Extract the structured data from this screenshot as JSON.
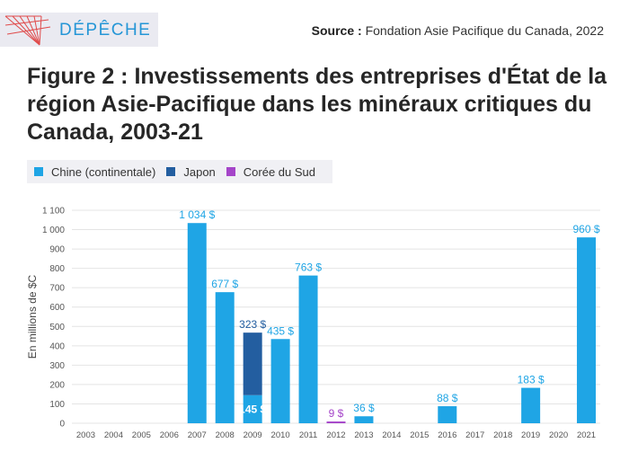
{
  "header": {
    "brand": "DÉPÊCHE",
    "source_label": "Source :",
    "source_text": "Fondation Asie Pacifique du Canada, 2022"
  },
  "colors": {
    "chine": "#1fa5e5",
    "japon": "#235ea0",
    "coree": "#a545c9",
    "brand": "#2596d6",
    "grid": "#e4e4e4"
  },
  "chart_data": {
    "type": "bar",
    "stacked": true,
    "title": "Figure 2 : Investissements des entreprises d'État de la région Asie-Pacifique dans les minéraux critiques du Canada, 2003-21",
    "ylabel": "En millions de $C",
    "xlabel": "",
    "ylim": [
      0,
      1100
    ],
    "yticks": [
      0,
      100,
      200,
      300,
      400,
      500,
      600,
      700,
      800,
      900,
      1000,
      1100
    ],
    "ytick_labels": [
      "0",
      "100",
      "200",
      "300",
      "400",
      "500",
      "600",
      "700",
      "800",
      "900",
      "1 000",
      "1 100"
    ],
    "grid": true,
    "legend_position": "top-left",
    "categories": [
      "2003",
      "2004",
      "2005",
      "2006",
      "2007",
      "2008",
      "2009",
      "2010",
      "2011",
      "2012",
      "2013",
      "2014",
      "2015",
      "2016",
      "2017",
      "2018",
      "2019",
      "2020",
      "2021"
    ],
    "series": [
      {
        "name": "Chine (continentale)",
        "color": "#1fa5e5",
        "values": [
          0,
          0,
          0,
          0,
          1034,
          677,
          145,
          435,
          763,
          0,
          36,
          0,
          0,
          88,
          0,
          0,
          183,
          0,
          960
        ]
      },
      {
        "name": "Japon",
        "color": "#235ea0",
        "values": [
          0,
          0,
          0,
          0,
          0,
          0,
          323,
          0,
          0,
          0,
          0,
          0,
          0,
          0,
          0,
          0,
          0,
          0,
          0
        ]
      },
      {
        "name": "Corée du Sud",
        "color": "#a545c9",
        "values": [
          0,
          0,
          0,
          0,
          0,
          0,
          0,
          0,
          0,
          9,
          0,
          0,
          0,
          0,
          0,
          0,
          0,
          0,
          0
        ]
      }
    ],
    "data_labels": [
      {
        "category": "2007",
        "series": 0,
        "text": "1 034 $"
      },
      {
        "category": "2008",
        "series": 0,
        "text": "677 $"
      },
      {
        "category": "2009",
        "series": 1,
        "text": "323 $"
      },
      {
        "category": "2009",
        "series": 0,
        "text": "145 $",
        "inside": true
      },
      {
        "category": "2010",
        "series": 0,
        "text": "435 $"
      },
      {
        "category": "2011",
        "series": 0,
        "text": "763 $"
      },
      {
        "category": "2012",
        "series": 2,
        "text": "9 $"
      },
      {
        "category": "2013",
        "series": 0,
        "text": "36 $"
      },
      {
        "category": "2016",
        "series": 0,
        "text": "88 $"
      },
      {
        "category": "2019",
        "series": 0,
        "text": "183 $"
      },
      {
        "category": "2021",
        "series": 0,
        "text": "960 $"
      }
    ]
  }
}
